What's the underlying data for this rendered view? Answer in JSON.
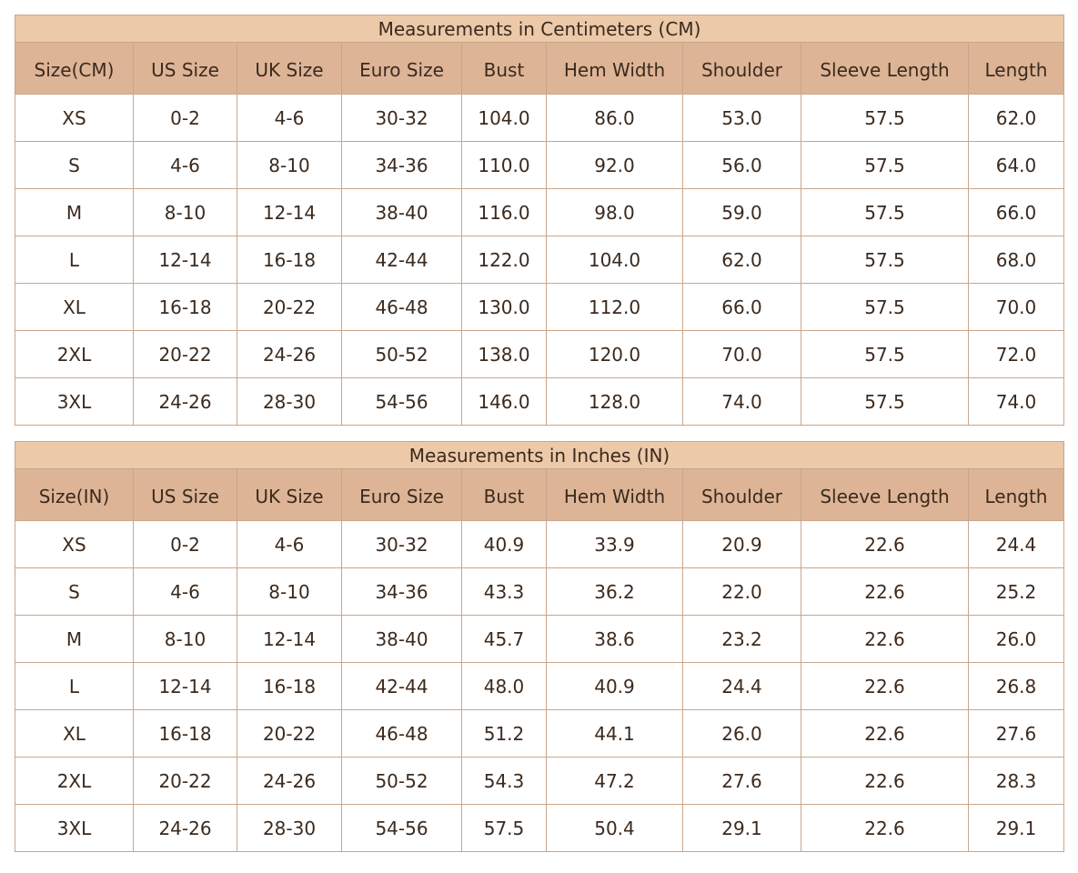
{
  "tables": [
    {
      "title": "Measurements in Centimeters (CM)",
      "headers": [
        "Size(CM)",
        "US Size",
        "UK Size",
        "Euro Size",
        "Bust",
        "Hem Width",
        "Shoulder",
        "Sleeve Length",
        "Length"
      ],
      "rows": [
        [
          "XS",
          "0-2",
          "4-6",
          "30-32",
          "104.0",
          "86.0",
          "53.0",
          "57.5",
          "62.0"
        ],
        [
          "S",
          "4-6",
          "8-10",
          "34-36",
          "110.0",
          "92.0",
          "56.0",
          "57.5",
          "64.0"
        ],
        [
          "M",
          "8-10",
          "12-14",
          "38-40",
          "116.0",
          "98.0",
          "59.0",
          "57.5",
          "66.0"
        ],
        [
          "L",
          "12-14",
          "16-18",
          "42-44",
          "122.0",
          "104.0",
          "62.0",
          "57.5",
          "68.0"
        ],
        [
          "XL",
          "16-18",
          "20-22",
          "46-48",
          "130.0",
          "112.0",
          "66.0",
          "57.5",
          "70.0"
        ],
        [
          "2XL",
          "20-22",
          "24-26",
          "50-52",
          "138.0",
          "120.0",
          "70.0",
          "57.5",
          "72.0"
        ],
        [
          "3XL",
          "24-26",
          "28-30",
          "54-56",
          "146.0",
          "128.0",
          "74.0",
          "57.5",
          "74.0"
        ]
      ]
    },
    {
      "title": "Measurements in Inches (IN)",
      "headers": [
        "Size(IN)",
        "US Size",
        "UK Size",
        "Euro Size",
        "Bust",
        "Hem Width",
        "Shoulder",
        "Sleeve Length",
        "Length"
      ],
      "rows": [
        [
          "XS",
          "0-2",
          "4-6",
          "30-32",
          "40.9",
          "33.9",
          "20.9",
          "22.6",
          "24.4"
        ],
        [
          "S",
          "4-6",
          "8-10",
          "34-36",
          "43.3",
          "36.2",
          "22.0",
          "22.6",
          "25.2"
        ],
        [
          "M",
          "8-10",
          "12-14",
          "38-40",
          "45.7",
          "38.6",
          "23.2",
          "22.6",
          "26.0"
        ],
        [
          "L",
          "12-14",
          "16-18",
          "42-44",
          "48.0",
          "40.9",
          "24.4",
          "22.6",
          "26.8"
        ],
        [
          "XL",
          "16-18",
          "20-22",
          "46-48",
          "51.2",
          "44.1",
          "26.0",
          "22.6",
          "27.6"
        ],
        [
          "2XL",
          "20-22",
          "24-26",
          "50-52",
          "54.3",
          "47.2",
          "27.6",
          "22.6",
          "28.3"
        ],
        [
          "3XL",
          "24-26",
          "28-30",
          "54-56",
          "57.5",
          "50.4",
          "29.1",
          "22.6",
          "29.1"
        ]
      ]
    }
  ]
}
